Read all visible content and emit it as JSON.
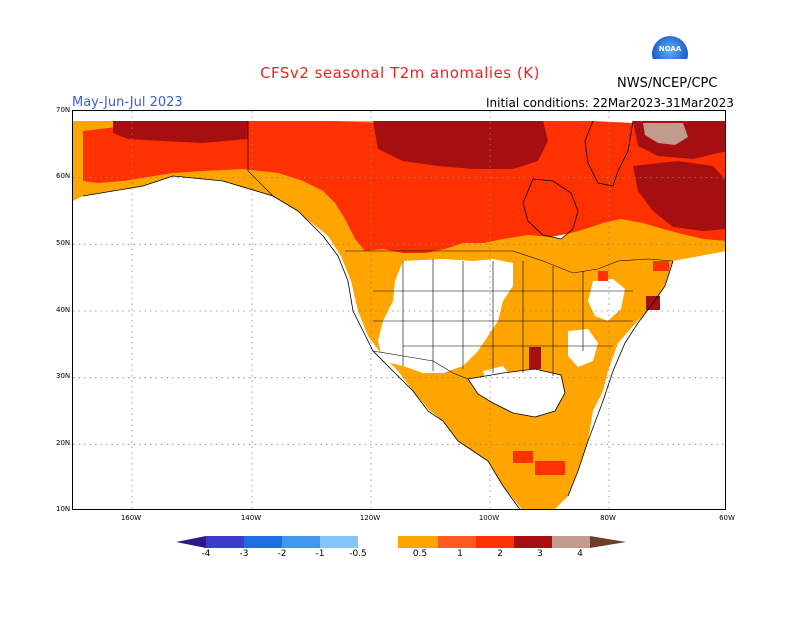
{
  "header": {
    "title": "CFSv2 seasonal T2m anomalies (K)",
    "period": "May-Jun-Jul 2023",
    "initial_conditions": "Initial conditions: 22Mar2023-31Mar2023",
    "agency": "NWS/NCEP/CPC",
    "logo_text": "NOAA"
  },
  "map": {
    "latitude_labels": [
      "70N",
      "60N",
      "50N",
      "40N",
      "30N",
      "20N",
      "10N"
    ],
    "longitude_labels": [
      "160W",
      "140W",
      "120W",
      "100W",
      "80W",
      "60W"
    ],
    "grid": "dotted"
  },
  "legend": {
    "labels": [
      "-4",
      "-3",
      "-2",
      "-1",
      "-0.5",
      "0.5",
      "1",
      "2",
      "3",
      "4"
    ],
    "colors": {
      "below_minus4": "#2a1a8c",
      "m4_m3": "#3c3ccf",
      "m3_m2": "#1f6ee0",
      "m2_m1": "#3f98ee",
      "m1_m05": "#86c3f6",
      "m05_05": "#ffffff",
      "p05_1": "#ffa500",
      "p1_2": "#ff5a1e",
      "p2_3": "#ff3100",
      "p3_4": "#a50f0f",
      "p4_5": "#c29b8e",
      "above_4": "#6b3f2a"
    }
  },
  "anomaly_colors": {
    "low": "#ffa500",
    "mid": "#ff5a1e",
    "high": "#ff3100",
    "very_high": "#a50f0f",
    "extreme": "#c29b8e"
  }
}
